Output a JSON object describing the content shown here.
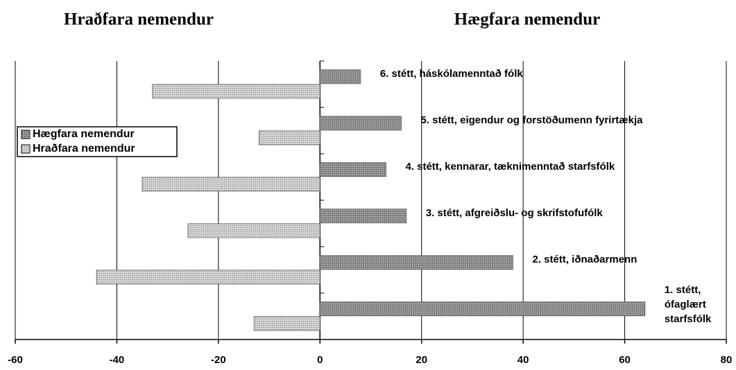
{
  "chart_data": {
    "type": "bar",
    "orientation": "horizontal",
    "titles": [
      "Hraðfara nemendur",
      "Hægfara nemendur"
    ],
    "categories": [
      "6. stétt, háskólamenntað fólk",
      "5. stétt, eigendur og forstöðumenn fyrirtækja",
      "4. stétt, kennarar, tæknimenntað starfsfólk",
      "3. stétt, afgreiðslu- og skrifstofufólk",
      "2. stétt, iðnaðarmenn",
      "1. stétt,\nófaglært\nstarfsfólk"
    ],
    "series": [
      {
        "name": "Hægfara nemendur",
        "color": "#8c8c8c",
        "values": [
          8,
          16,
          13,
          17,
          38,
          64
        ]
      },
      {
        "name": "Hraðfara nemendur",
        "color": "#cdcdcd",
        "values": [
          -33,
          -12,
          -35,
          -26,
          -44,
          -13
        ]
      }
    ],
    "xlim": [
      -60,
      80
    ],
    "xticks": [
      -60,
      -40,
      -20,
      0,
      20,
      40,
      60,
      80
    ],
    "grid": true,
    "legend": "left"
  }
}
